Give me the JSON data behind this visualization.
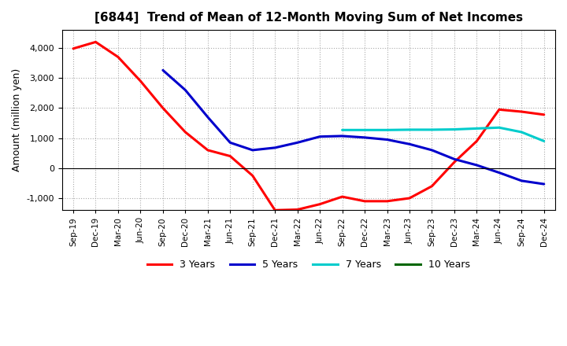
{
  "title": "[6844]  Trend of Mean of 12-Month Moving Sum of Net Incomes",
  "ylabel": "Amount (million yen)",
  "background_color": "#ffffff",
  "grid_color": "#aaaaaa",
  "legend_labels": [
    "3 Years",
    "5 Years",
    "7 Years",
    "10 Years"
  ],
  "legend_colors": [
    "#ff0000",
    "#0000cc",
    "#00cccc",
    "#006600"
  ],
  "x_labels": [
    "Sep-19",
    "Dec-19",
    "Mar-20",
    "Jun-20",
    "Sep-20",
    "Dec-20",
    "Mar-21",
    "Jun-21",
    "Sep-21",
    "Dec-21",
    "Mar-22",
    "Jun-22",
    "Sep-22",
    "Dec-22",
    "Mar-23",
    "Jun-23",
    "Sep-23",
    "Dec-23",
    "Mar-24",
    "Jun-24",
    "Sep-24",
    "Dec-24"
  ],
  "ylim": [
    -1400,
    4600
  ],
  "yticks": [
    -1000,
    0,
    1000,
    2000,
    3000,
    4000
  ],
  "series_3y": [
    3980,
    4200,
    3700,
    2900,
    2000,
    1200,
    600,
    400,
    -250,
    -1400,
    -1380,
    -1200,
    -950,
    -1100,
    -1100,
    -1000,
    -600,
    200,
    900,
    1950,
    1880,
    1780
  ],
  "series_5y": [
    null,
    null,
    null,
    null,
    3260,
    2600,
    1700,
    850,
    600,
    680,
    850,
    1050,
    1070,
    1020,
    950,
    800,
    600,
    300,
    100,
    -150,
    -420,
    -530
  ],
  "series_7y": [
    null,
    null,
    null,
    null,
    null,
    null,
    null,
    null,
    null,
    null,
    null,
    null,
    1270,
    1270,
    1270,
    1280,
    1280,
    1290,
    1320,
    1350,
    1200,
    900
  ],
  "series_10y": [
    null,
    null,
    null,
    null,
    null,
    null,
    null,
    null,
    null,
    null,
    null,
    null,
    null,
    null,
    null,
    null,
    null,
    null,
    null,
    null,
    null,
    null
  ]
}
